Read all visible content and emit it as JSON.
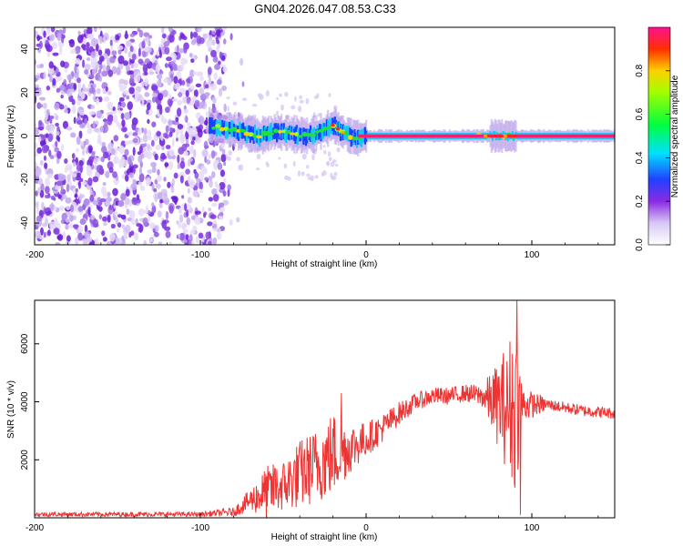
{
  "title": "GN04.2026.047.08.53.C33",
  "chart_data": [
    {
      "type": "heatmap",
      "xlabel": "Height of straight line (km)",
      "ylabel": "Frequency (Hz)",
      "xlim": [
        -200,
        150
      ],
      "ylim": [
        -50,
        50
      ],
      "xticks": [
        -200,
        -100,
        0,
        100
      ],
      "xtick_labels": [
        "-200",
        "-100",
        "0",
        "100"
      ],
      "yticks": [
        -40,
        -20,
        0,
        20,
        40
      ],
      "ytick_labels": [
        "-40",
        "-20",
        "0",
        "20",
        "40"
      ],
      "noise_region_x": [
        -200,
        -85
      ],
      "signal_band": {
        "frequency_hz": 0,
        "x_range": [
          -95,
          150
        ],
        "centerline": [
          {
            "x": -95,
            "f": 5
          },
          {
            "x": -85,
            "f": 3
          },
          {
            "x": -75,
            "f": 2
          },
          {
            "x": -65,
            "f": 0
          },
          {
            "x": -55,
            "f": 2
          },
          {
            "x": -45,
            "f": 1
          },
          {
            "x": -35,
            "f": 0
          },
          {
            "x": -25,
            "f": 3
          },
          {
            "x": -20,
            "f": 5
          },
          {
            "x": -15,
            "f": 2
          },
          {
            "x": -10,
            "f": 0
          },
          {
            "x": -5,
            "f": -1
          },
          {
            "x": 0,
            "f": 0
          },
          {
            "x": 150,
            "f": 0
          }
        ]
      },
      "colorbar": {
        "label": "Normalized spectral amplitude",
        "range": [
          0,
          1
        ],
        "ticks": [
          0.0,
          0.2,
          0.4,
          0.6,
          0.8
        ],
        "tick_labels": [
          "0.0",
          "0.2",
          "0.4",
          "0.6",
          "0.8"
        ]
      }
    },
    {
      "type": "line",
      "xlabel": "Height of straight line (km)",
      "ylabel": "SNR (10 * v/v)",
      "xlim": [
        -200,
        150
      ],
      "ylim": [
        0,
        7500
      ],
      "xticks": [
        -200,
        -100,
        0,
        100
      ],
      "xtick_labels": [
        "-200",
        "-100",
        "0",
        "100"
      ],
      "yticks": [
        2000,
        4000,
        6000
      ],
      "ytick_labels": [
        "2000",
        "4000",
        "6000"
      ],
      "series": [
        {
          "name": "SNR",
          "color": "#ee3333",
          "envelope": [
            {
              "x": -200,
              "mean": 120,
              "spread": 80
            },
            {
              "x": -100,
              "mean": 120,
              "spread": 80
            },
            {
              "x": -80,
              "mean": 200,
              "spread": 150
            },
            {
              "x": -70,
              "mean": 600,
              "spread": 400
            },
            {
              "x": -60,
              "mean": 900,
              "spread": 900
            },
            {
              "x": -50,
              "mean": 1100,
              "spread": 900
            },
            {
              "x": -40,
              "mean": 1500,
              "spread": 1200
            },
            {
              "x": -30,
              "mean": 1800,
              "spread": 1300
            },
            {
              "x": -20,
              "mean": 2200,
              "spread": 1500
            },
            {
              "x": -10,
              "mean": 2400,
              "spread": 900
            },
            {
              "x": 0,
              "mean": 2700,
              "spread": 600
            },
            {
              "x": 10,
              "mean": 3100,
              "spread": 500
            },
            {
              "x": 20,
              "mean": 3600,
              "spread": 400
            },
            {
              "x": 30,
              "mean": 4000,
              "spread": 300
            },
            {
              "x": 40,
              "mean": 4200,
              "spread": 300
            },
            {
              "x": 50,
              "mean": 4200,
              "spread": 300
            },
            {
              "x": 60,
              "mean": 4300,
              "spread": 300
            },
            {
              "x": 70,
              "mean": 4200,
              "spread": 400
            },
            {
              "x": 80,
              "mean": 3900,
              "spread": 1500
            },
            {
              "x": 90,
              "mean": 3800,
              "spread": 3000
            },
            {
              "x": 95,
              "mean": 3900,
              "spread": 600
            },
            {
              "x": 110,
              "mean": 3900,
              "spread": 200
            },
            {
              "x": 130,
              "mean": 3700,
              "spread": 200
            },
            {
              "x": 150,
              "mean": 3600,
              "spread": 200
            }
          ],
          "peaks": [
            {
              "x": -55,
              "y": 1700
            },
            {
              "x": -15,
              "y": 4300
            },
            {
              "x": 85,
              "y": 5400
            },
            {
              "x": 91,
              "y": 7500
            },
            {
              "x": 93,
              "y": 100
            }
          ]
        }
      ]
    }
  ]
}
